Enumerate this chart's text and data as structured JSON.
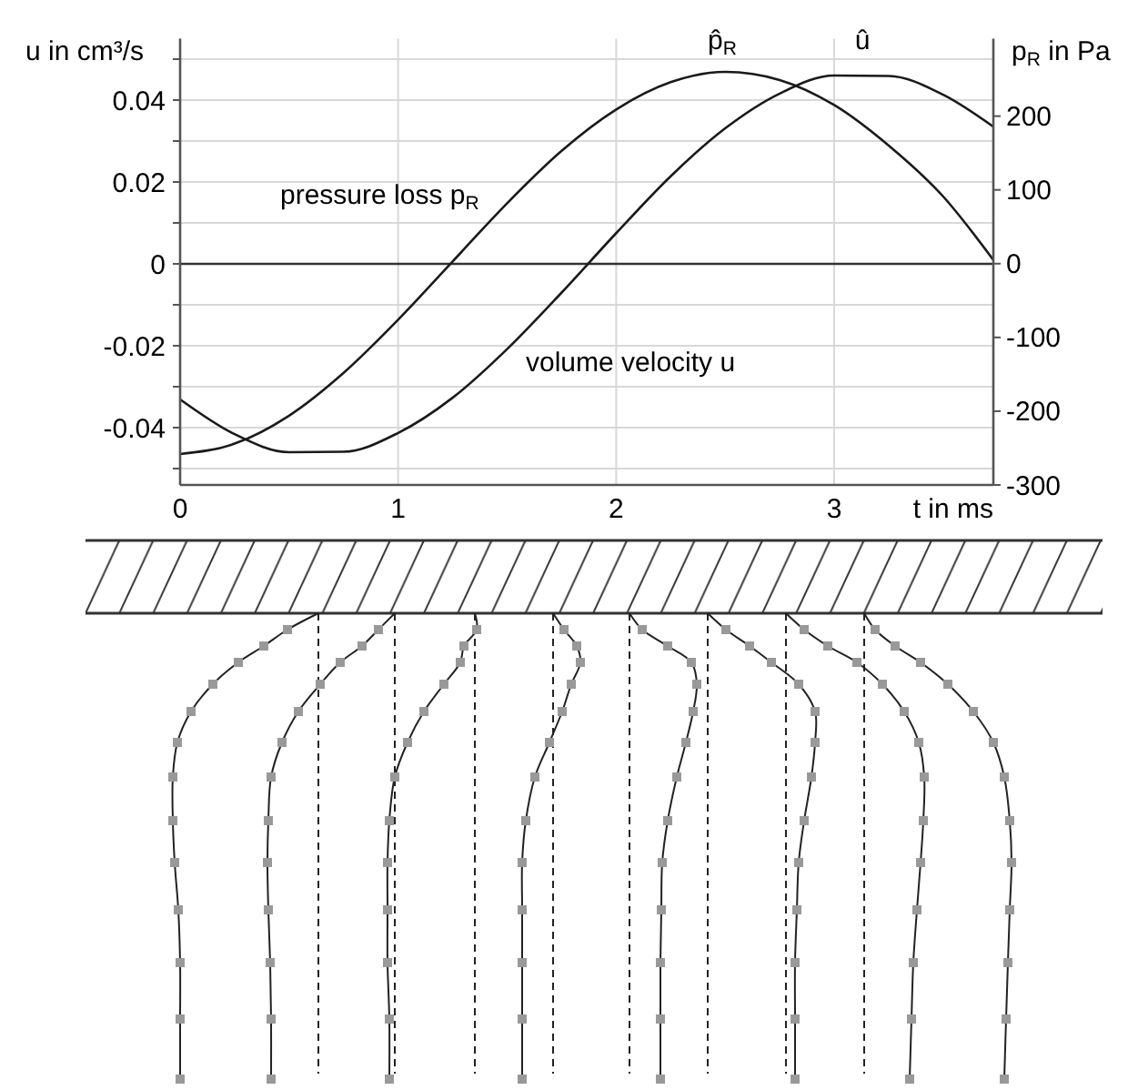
{
  "chart_data": {
    "type": "line",
    "xlabel": "t in ms",
    "ylabel": "u in cm³/s",
    "y2label": "p$_{R}$ in Pa",
    "x": [
      0,
      0.25,
      0.5,
      0.75,
      1,
      1.25,
      1.5,
      1.75,
      2,
      2.25,
      2.5,
      2.75,
      3,
      3.25,
      3.5,
      3.73
    ],
    "series": [
      {
        "color": "#1a1a1a",
        "axis": "y",
        "values": [
          -0.0331,
          -0.0416,
          -0.046,
          -0.0459,
          -0.0413,
          -0.0327,
          -0.0208,
          -0.007,
          0.0075,
          0.0214,
          0.0331,
          0.0416,
          0.046,
          0.0459,
          0.0413,
          0.0335
        ]
      },
      {
        "color": "#1a1a1a",
        "axis": "y2",
        "values": [
          -258,
          -244,
          -206,
          -148,
          -76,
          3,
          82,
          153,
          209,
          246,
          260,
          249,
          215,
          160,
          91,
          5
        ]
      }
    ],
    "xlim": [
      0,
      3.73
    ],
    "xticks": [
      0,
      1,
      2,
      3
    ],
    "ylim": [
      -0.054,
      0.055
    ],
    "yticks": [
      {
        "value": -0.05,
        "label": null
      },
      -0.04,
      {
        "value": -0.03,
        "label": null
      },
      -0.02,
      {
        "value": -0.01,
        "label": null
      },
      0,
      {
        "value": 0.01,
        "label": null
      },
      0.02,
      {
        "value": 0.03,
        "label": null
      },
      0.04,
      {
        "value": 0.05,
        "label": null
      }
    ],
    "y2lim": [
      -300,
      305
    ],
    "y2ticks": [
      -300,
      -200,
      -100,
      0,
      100,
      200
    ],
    "ref_lines": [
      {
        "axis": "y",
        "value": 0,
        "color": "#333333"
      }
    ],
    "grid": true,
    "marker": "none",
    "line_style": "solid",
    "annotations": [
      "pressure loss p$_{R}$",
      "volume velocity u",
      "p̂$_{R}$",
      "û"
    ]
  }
}
